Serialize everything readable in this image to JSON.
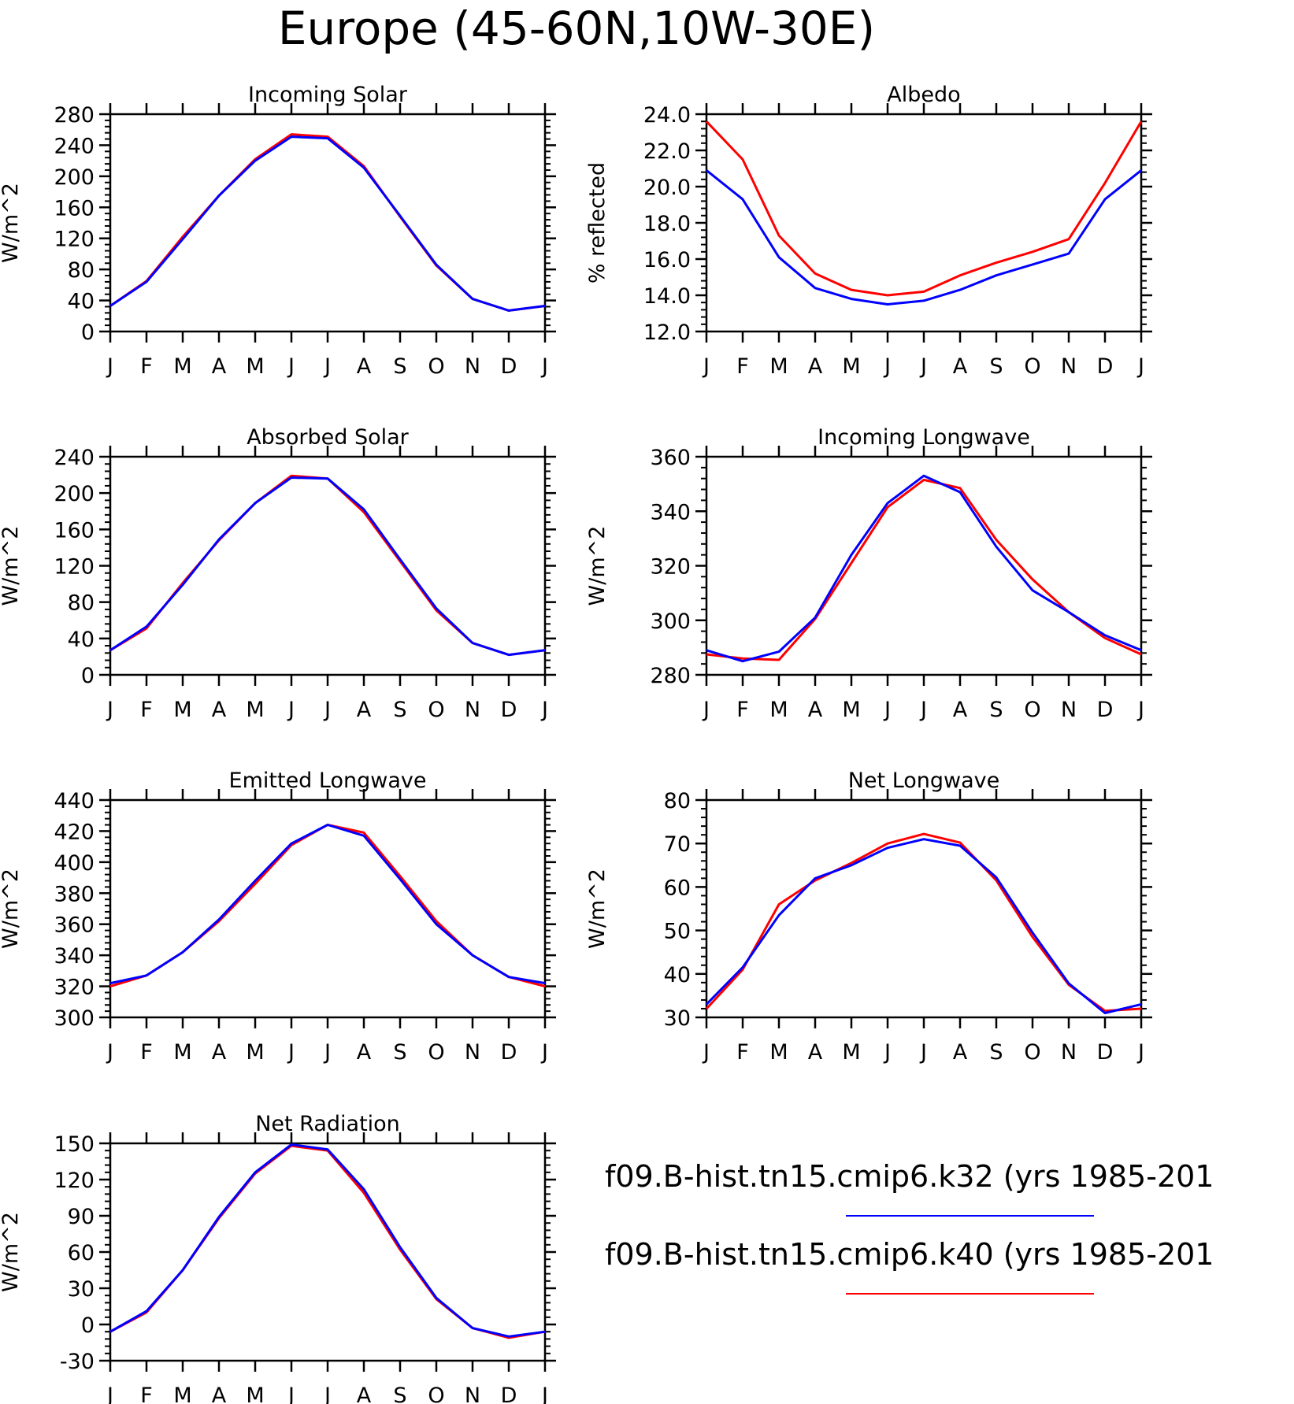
{
  "title": "Europe (45-60N,10W-30E)",
  "months": [
    "J",
    "F",
    "M",
    "A",
    "M",
    "J",
    "J",
    "A",
    "S",
    "O",
    "N",
    "D",
    "J"
  ],
  "colors": {
    "k32": "#0000ff",
    "k40": "#ff0000"
  },
  "legend": [
    {
      "label": "f09.B-hist.tn15.cmip6.k32 (yrs 1985-201",
      "color": "#0000ff"
    },
    {
      "label": "f09.B-hist.tn15.cmip6.k40 (yrs 1985-201",
      "color": "#ff0000"
    }
  ],
  "chart_data": [
    {
      "type": "line",
      "title": "Incoming Solar",
      "ylabel": "W/m^2",
      "ylim": [
        0,
        280
      ],
      "yticks": [
        0,
        40,
        80,
        120,
        160,
        200,
        240,
        280
      ],
      "ytick_labels": [
        "0",
        "40",
        "80",
        "120",
        "160",
        "200",
        "240",
        "280"
      ],
      "series": [
        {
          "values": [
            33,
            65,
            122,
            175,
            222,
            254,
            251,
            213,
            148,
            85,
            42,
            27,
            33
          ],
          "color": "#ff0000"
        },
        {
          "values": [
            33,
            64,
            119,
            175,
            220,
            251,
            249,
            211,
            149,
            86,
            42,
            27,
            33
          ],
          "color": "#0000ff"
        }
      ]
    },
    {
      "type": "line",
      "title": "Albedo",
      "ylabel": "% reflected",
      "ylim": [
        12,
        24
      ],
      "yticks": [
        12,
        14,
        16,
        18,
        20,
        22,
        24
      ],
      "ytick_labels": [
        "12.0",
        "14.0",
        "16.0",
        "18.0",
        "20.0",
        "22.0",
        "24.0"
      ],
      "series": [
        {
          "values": [
            23.6,
            21.5,
            17.3,
            15.2,
            14.3,
            14.0,
            14.2,
            15.1,
            15.8,
            16.4,
            17.1,
            20.2,
            23.6
          ],
          "color": "#ff0000"
        },
        {
          "values": [
            20.9,
            19.3,
            16.1,
            14.4,
            13.8,
            13.5,
            13.7,
            14.3,
            15.1,
            15.7,
            16.3,
            19.3,
            20.9
          ],
          "color": "#0000ff"
        }
      ]
    },
    {
      "type": "line",
      "title": "Absorbed Solar",
      "ylabel": "W/m^2",
      "ylim": [
        0,
        240
      ],
      "yticks": [
        0,
        40,
        80,
        120,
        160,
        200,
        240
      ],
      "ytick_labels": [
        "0",
        "40",
        "80",
        "120",
        "160",
        "200",
        "240"
      ],
      "series": [
        {
          "values": [
            27,
            51,
            101,
            148,
            189,
            219,
            216,
            179,
            125,
            71,
            35,
            22,
            27
          ],
          "color": "#ff0000"
        },
        {
          "values": [
            27,
            53,
            99,
            149,
            189,
            217,
            216,
            182,
            127,
            73,
            35,
            22,
            27
          ],
          "color": "#0000ff"
        }
      ]
    },
    {
      "type": "line",
      "title": "Incoming Longwave",
      "ylabel": "W/m^2",
      "ylim": [
        280,
        360
      ],
      "yticks": [
        280,
        300,
        320,
        340,
        360
      ],
      "ytick_labels": [
        "280",
        "300",
        "320",
        "340",
        "360"
      ],
      "series": [
        {
          "values": [
            287.5,
            286,
            285.5,
            300.5,
            321,
            341.5,
            351.5,
            348.5,
            329.5,
            315,
            303,
            293.5,
            287.5
          ],
          "color": "#ff0000"
        },
        {
          "values": [
            289,
            285,
            288.5,
            301,
            324,
            343,
            353,
            347,
            327,
            311,
            303,
            294.5,
            289
          ],
          "color": "#0000ff"
        }
      ]
    },
    {
      "type": "line",
      "title": "Emitted Longwave",
      "ylabel": "W/m^2",
      "ylim": [
        300,
        440
      ],
      "yticks": [
        300,
        320,
        340,
        360,
        380,
        400,
        420,
        440
      ],
      "ytick_labels": [
        "300",
        "320",
        "340",
        "360",
        "380",
        "400",
        "420",
        "440"
      ],
      "series": [
        {
          "values": [
            320,
            327,
            342,
            362,
            386,
            411,
            424,
            419,
            391,
            362,
            340,
            326,
            320
          ],
          "color": "#ff0000"
        },
        {
          "values": [
            322,
            327,
            342,
            363,
            388,
            412,
            424,
            417,
            389,
            360,
            340,
            326,
            322
          ],
          "color": "#0000ff"
        }
      ]
    },
    {
      "type": "line",
      "title": "Net Longwave",
      "ylabel": "W/m^2",
      "ylim": [
        30,
        80
      ],
      "yticks": [
        30,
        40,
        50,
        60,
        70,
        80
      ],
      "ytick_labels": [
        "30",
        "40",
        "50",
        "60",
        "70",
        "80"
      ],
      "series": [
        {
          "values": [
            32,
            41,
            56,
            61.5,
            65.5,
            70,
            72.2,
            70.2,
            61.5,
            48.5,
            37.5,
            31.5,
            32
          ],
          "color": "#ff0000"
        },
        {
          "values": [
            33,
            41.5,
            53.5,
            62,
            65,
            69,
            71,
            69.5,
            62.2,
            49.5,
            37.8,
            31,
            33
          ],
          "color": "#0000ff"
        }
      ]
    },
    {
      "type": "line",
      "title": "Net Radiation",
      "ylabel": "W/m^2",
      "ylim": [
        -30,
        150
      ],
      "yticks": [
        -30,
        0,
        30,
        60,
        90,
        120,
        150
      ],
      "ytick_labels": [
        "-30",
        "0",
        "30",
        "60",
        "90",
        "120",
        "150"
      ],
      "series": [
        {
          "values": [
            -6,
            10,
            45,
            88,
            125,
            148,
            144,
            109,
            62,
            21,
            -3,
            -11,
            -6
          ],
          "color": "#ff0000"
        },
        {
          "values": [
            -6,
            11,
            45,
            89,
            126,
            149,
            145,
            112,
            64,
            22,
            -3,
            -10,
            -6
          ],
          "color": "#0000ff"
        }
      ]
    }
  ]
}
